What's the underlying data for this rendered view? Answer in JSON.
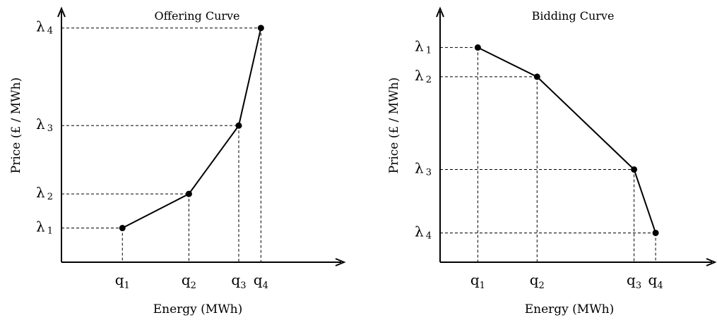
{
  "chart_data": [
    {
      "type": "line",
      "title": "Offering Curve",
      "xlabel": "Energy (MWh)",
      "ylabel": "Price (£ / MWh)",
      "xlim": [
        0,
        5.1
      ],
      "ylim": [
        0,
        5.2
      ],
      "x_tick_labels": [
        {
          "main": "q",
          "sub": "1"
        },
        {
          "main": "q",
          "sub": "2"
        },
        {
          "main": "q",
          "sub": "3"
        },
        {
          "main": "q",
          "sub": "4"
        }
      ],
      "y_tick_labels": [
        {
          "main": "λ",
          "sub": "1"
        },
        {
          "main": "λ",
          "sub": "2"
        },
        {
          "main": "λ",
          "sub": "3"
        },
        {
          "main": "λ",
          "sub": "4"
        }
      ],
      "points": [
        {
          "x": 1.1,
          "y": 0.7
        },
        {
          "x": 2.3,
          "y": 1.4
        },
        {
          "x": 3.2,
          "y": 2.8
        },
        {
          "x": 3.6,
          "y": 4.8
        }
      ]
    },
    {
      "type": "line",
      "title": "Bidding Curve",
      "xlabel": "Energy (MWh)",
      "ylabel": "Price (£ / MWh)",
      "xlim": [
        0,
        5.1
      ],
      "ylim": [
        0,
        5.2
      ],
      "x_tick_labels": [
        {
          "main": "q",
          "sub": "1"
        },
        {
          "main": "q",
          "sub": "2"
        },
        {
          "main": "q",
          "sub": "3"
        },
        {
          "main": "q",
          "sub": "4"
        }
      ],
      "y_tick_labels": [
        {
          "main": "λ",
          "sub": "1"
        },
        {
          "main": "λ",
          "sub": "2"
        },
        {
          "main": "λ",
          "sub": "3"
        },
        {
          "main": "λ",
          "sub": "4"
        }
      ],
      "points": [
        {
          "x": 0.7,
          "y": 4.4
        },
        {
          "x": 1.8,
          "y": 3.8
        },
        {
          "x": 3.6,
          "y": 1.9
        },
        {
          "x": 4.0,
          "y": 0.6
        }
      ]
    }
  ]
}
